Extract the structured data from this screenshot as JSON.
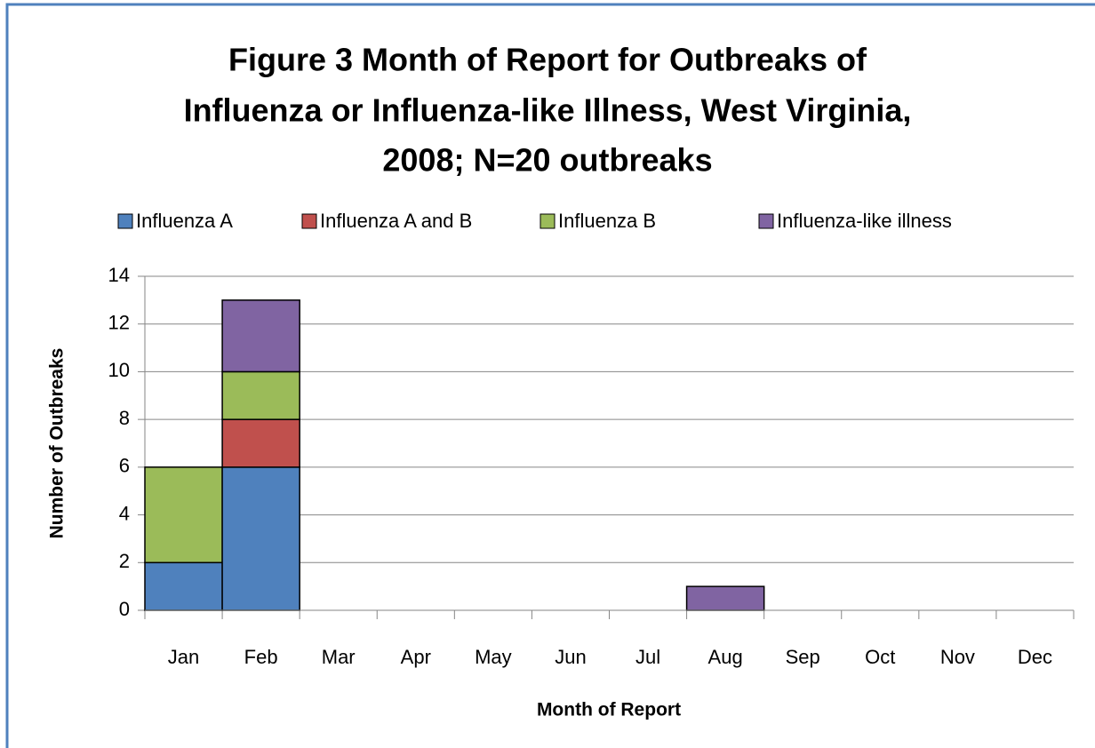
{
  "chart_data": {
    "type": "stacked_bar",
    "title": [
      "Figure 3 Month of Report for Outbreaks of",
      "Influenza or Influenza-like Illness, West Virginia,",
      "2008; N=20 outbreaks"
    ],
    "x_label": "Month of Report",
    "y_label": "Number of Outbreaks",
    "categories": [
      "Jan",
      "Feb",
      "Mar",
      "Apr",
      "May",
      "Jun",
      "Jul",
      "Aug",
      "Sep",
      "Oct",
      "Nov",
      "Dec"
    ],
    "series": [
      {
        "name": "Influenza A",
        "color": "#4f81bd",
        "values": [
          2,
          6,
          0,
          0,
          0,
          0,
          0,
          0,
          0,
          0,
          0,
          0
        ]
      },
      {
        "name": "Influenza A and B",
        "color": "#c0504d",
        "values": [
          0,
          2,
          0,
          0,
          0,
          0,
          0,
          0,
          0,
          0,
          0,
          0
        ]
      },
      {
        "name": "Influenza B",
        "color": "#9bbb59",
        "values": [
          4,
          2,
          0,
          0,
          0,
          0,
          0,
          0,
          0,
          0,
          0,
          0
        ]
      },
      {
        "name": "Influenza-like illness",
        "color": "#8064a2",
        "values": [
          0,
          3,
          0,
          0,
          0,
          0,
          0,
          1,
          0,
          0,
          0,
          0
        ]
      }
    ],
    "ylim": [
      0,
      14
    ],
    "yticks": [
      0,
      2,
      4,
      6,
      8,
      10,
      12,
      14
    ],
    "grid": true,
    "legend": "top"
  }
}
